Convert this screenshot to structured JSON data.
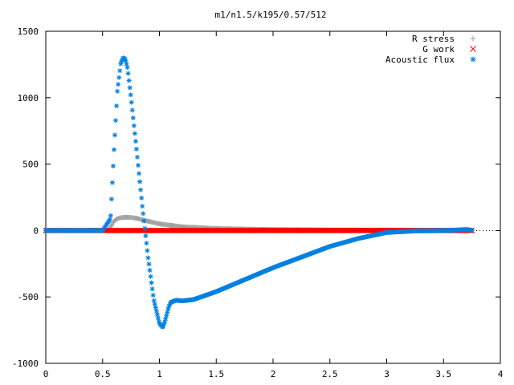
{
  "chart_data": {
    "type": "scatter",
    "title": "m1/n1.5/k195/0.57/512",
    "xlabel": "",
    "ylabel": "",
    "xlim": [
      0,
      4
    ],
    "ylim": [
      -1000,
      1500
    ],
    "xticks": [
      "0",
      "0.5",
      "1",
      "1.5",
      "2",
      "2.5",
      "3",
      "3.5",
      "4"
    ],
    "yticks": [
      "-1000",
      "-500",
      "0",
      "500",
      "1000",
      "1500"
    ],
    "grid": false,
    "legend_position": "top-right",
    "series": [
      {
        "name": "R stress",
        "marker": "plus",
        "color": "#a0a0a0",
        "x": [
          0.0,
          0.55,
          0.58,
          0.6,
          0.62,
          0.65,
          0.7,
          0.75,
          0.8,
          0.9,
          1.0,
          1.2,
          1.5,
          1.8,
          2.0,
          2.5,
          3.0,
          3.5,
          3.75
        ],
        "y": [
          0,
          0,
          40,
          70,
          85,
          95,
          100,
          98,
          92,
          70,
          50,
          28,
          15,
          10,
          7,
          4,
          3,
          2,
          1
        ]
      },
      {
        "name": "G work",
        "marker": "cross",
        "color": "#ff0000",
        "x": [
          0.0,
          0.5,
          1.0,
          1.5,
          2.0,
          2.5,
          3.0,
          3.5,
          3.75
        ],
        "y": [
          0,
          0,
          0,
          0,
          0,
          0,
          0,
          0,
          0
        ]
      },
      {
        "name": "Acoustic flux",
        "marker": "star",
        "color": "#0080e0",
        "x": [
          0.0,
          0.5,
          0.57,
          0.6,
          0.63,
          0.66,
          0.68,
          0.7,
          0.72,
          0.75,
          0.8,
          0.85,
          0.9,
          0.95,
          1.0,
          1.03,
          1.05,
          1.08,
          1.1,
          1.15,
          1.2,
          1.3,
          1.5,
          1.75,
          2.0,
          2.25,
          2.5,
          2.75,
          3.0,
          3.25,
          3.5,
          3.6,
          3.7,
          3.75
        ],
        "y": [
          0,
          0,
          90,
          600,
          1050,
          1260,
          1300,
          1290,
          1220,
          1000,
          600,
          180,
          -200,
          -520,
          -700,
          -730,
          -680,
          -580,
          -540,
          -525,
          -530,
          -520,
          -460,
          -370,
          -280,
          -200,
          -120,
          -60,
          -15,
          -3,
          0,
          3,
          8,
          2
        ]
      }
    ]
  }
}
